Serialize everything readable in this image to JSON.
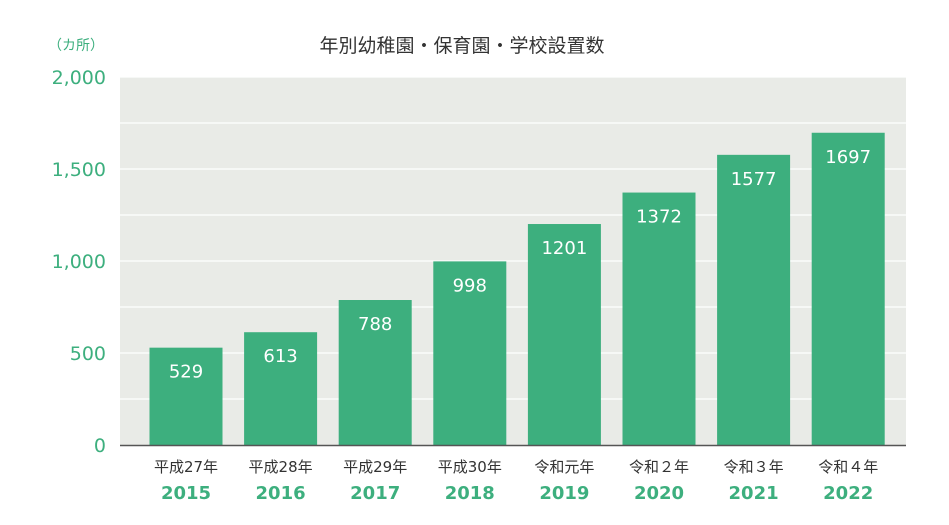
{
  "chart_data": {
    "type": "bar",
    "title": "年別幼稚園・保育園・学校設置数",
    "ylabel": "（カ所）",
    "ylim": [
      0,
      2000
    ],
    "yticks": [
      {
        "value": 0,
        "label": "0"
      },
      {
        "value": 500,
        "label": "500"
      },
      {
        "value": 1000,
        "label": "1,000"
      },
      {
        "value": 1500,
        "label": "1,500"
      },
      {
        "value": 2000,
        "label": "2,000"
      }
    ],
    "grid_step": 250,
    "categories": [
      {
        "era": "平成27年",
        "year": "2015"
      },
      {
        "era": "平成28年",
        "year": "2016"
      },
      {
        "era": "平成29年",
        "year": "2017"
      },
      {
        "era": "平成30年",
        "year": "2018"
      },
      {
        "era": "令和元年",
        "year": "2019"
      },
      {
        "era": "令和２年",
        "year": "2020"
      },
      {
        "era": "令和３年",
        "year": "2021"
      },
      {
        "era": "令和４年",
        "year": "2022"
      }
    ],
    "values": [
      529,
      613,
      788,
      998,
      1201,
      1372,
      1577,
      1697
    ],
    "colors": {
      "bar": "#3daf7e",
      "plot_bg": "#e9ebe7",
      "grid": "#ffffff",
      "axis": "#555555",
      "accent_text": "#3daf7e",
      "text": "#333333"
    }
  }
}
